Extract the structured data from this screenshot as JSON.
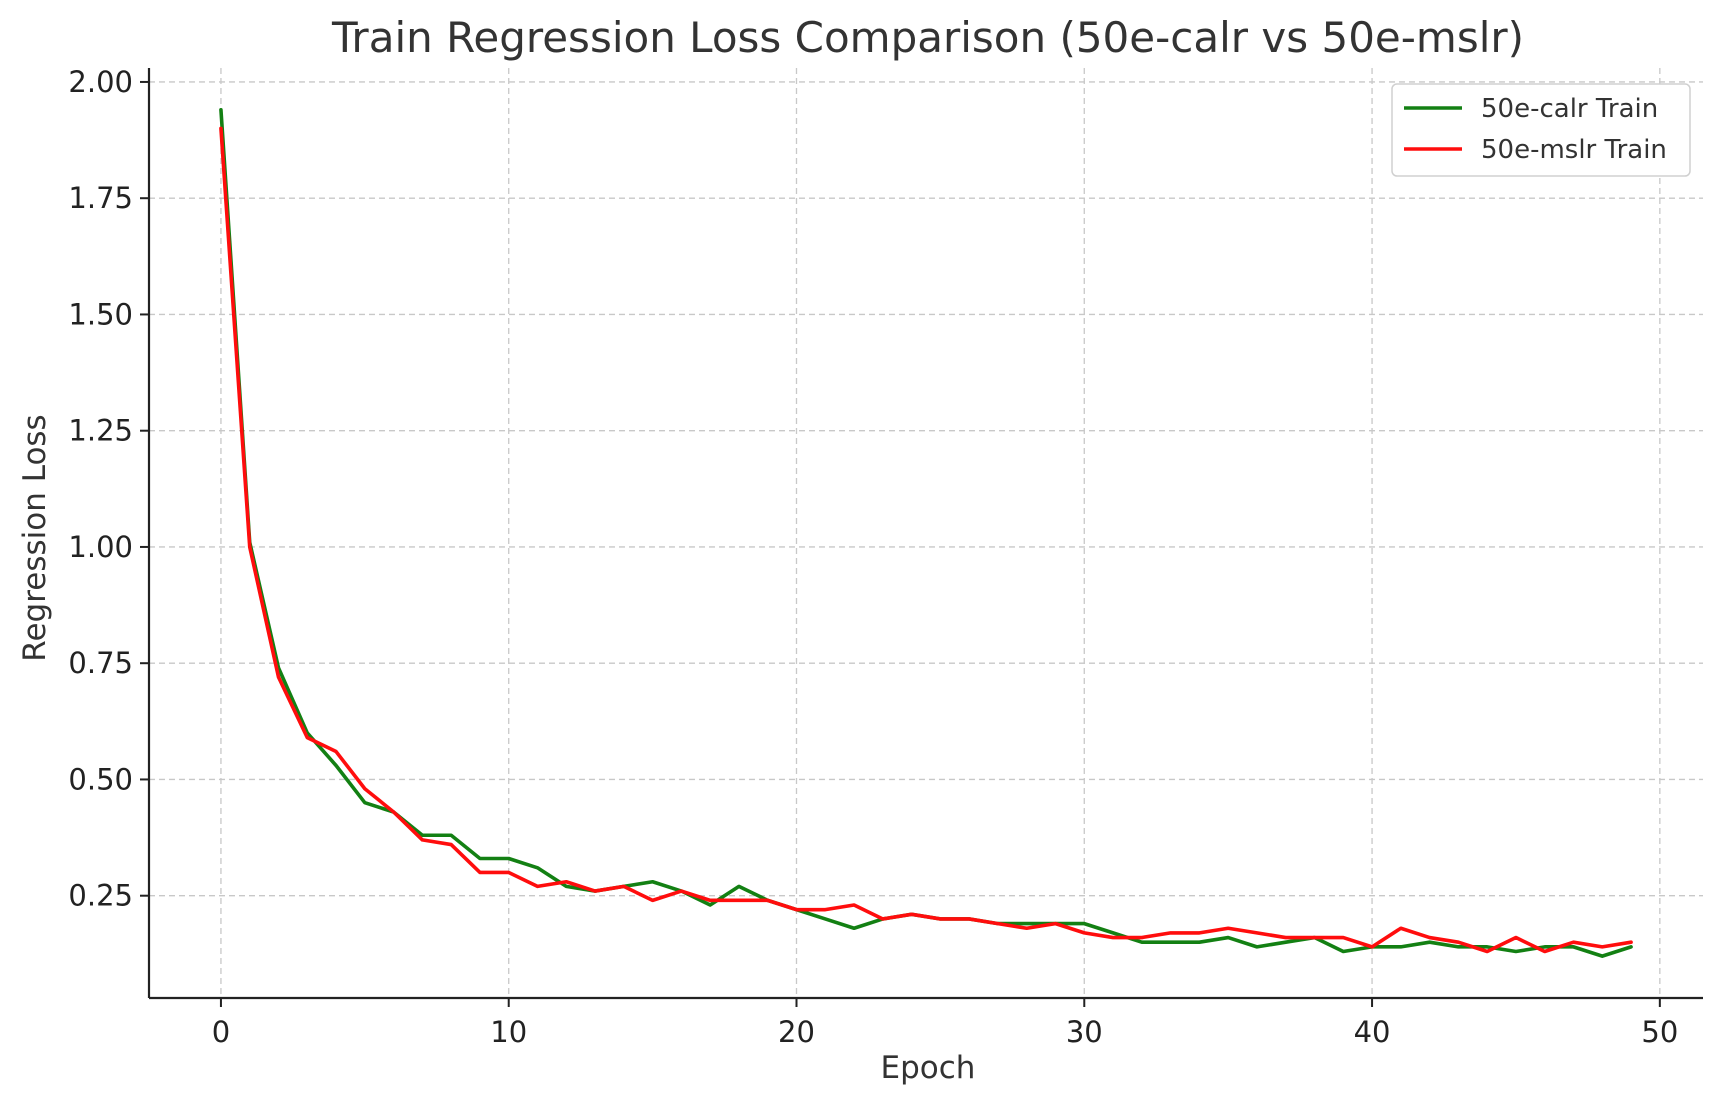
{
  "chart_data": {
    "type": "line",
    "title": "Train Regression Loss Comparison (50e-calr vs 50e-mslr)",
    "xlabel": "Epoch",
    "ylabel": "Regression Loss",
    "xlim": [
      -2.5,
      51.5
    ],
    "ylim": [
      0.03,
      2.03
    ],
    "xticks": [
      0,
      10,
      20,
      30,
      40,
      50
    ],
    "xtick_labels": [
      "0",
      "10",
      "20",
      "30",
      "40",
      "50"
    ],
    "yticks": [
      0.25,
      0.5,
      0.75,
      1.0,
      1.25,
      1.5,
      1.75,
      2.0
    ],
    "ytick_labels": [
      "0.25",
      "0.50",
      "0.75",
      "1.00",
      "1.25",
      "1.50",
      "1.75",
      "2.00"
    ],
    "grid": true,
    "legend_position": "top-right",
    "x": [
      0,
      1,
      2,
      3,
      4,
      5,
      6,
      7,
      8,
      9,
      10,
      11,
      12,
      13,
      14,
      15,
      16,
      17,
      18,
      19,
      20,
      21,
      22,
      23,
      24,
      25,
      26,
      27,
      28,
      29,
      30,
      31,
      32,
      33,
      34,
      35,
      36,
      37,
      38,
      39,
      40,
      41,
      42,
      43,
      44,
      45,
      46,
      47,
      48,
      49
    ],
    "series": [
      {
        "name": "50e-calr Train",
        "color": "#138013",
        "values": [
          1.94,
          1.01,
          0.74,
          0.6,
          0.53,
          0.45,
          0.43,
          0.38,
          0.38,
          0.33,
          0.33,
          0.31,
          0.27,
          0.26,
          0.27,
          0.28,
          0.26,
          0.23,
          0.27,
          0.24,
          0.22,
          0.2,
          0.18,
          0.2,
          0.21,
          0.2,
          0.2,
          0.19,
          0.19,
          0.19,
          0.19,
          0.17,
          0.15,
          0.15,
          0.15,
          0.16,
          0.14,
          0.15,
          0.16,
          0.13,
          0.14,
          0.14,
          0.15,
          0.14,
          0.14,
          0.13,
          0.14,
          0.14,
          0.12,
          0.14
        ]
      },
      {
        "name": "50e-mslr Train",
        "color": "#ff0d0d",
        "values": [
          1.9,
          1.0,
          0.72,
          0.59,
          0.56,
          0.48,
          0.43,
          0.37,
          0.36,
          0.3,
          0.3,
          0.27,
          0.28,
          0.26,
          0.27,
          0.24,
          0.26,
          0.24,
          0.24,
          0.24,
          0.22,
          0.22,
          0.23,
          0.2,
          0.21,
          0.2,
          0.2,
          0.19,
          0.18,
          0.19,
          0.17,
          0.16,
          0.16,
          0.17,
          0.17,
          0.18,
          0.17,
          0.16,
          0.16,
          0.16,
          0.14,
          0.18,
          0.16,
          0.15,
          0.13,
          0.16,
          0.13,
          0.15,
          0.14,
          0.15
        ]
      }
    ]
  }
}
